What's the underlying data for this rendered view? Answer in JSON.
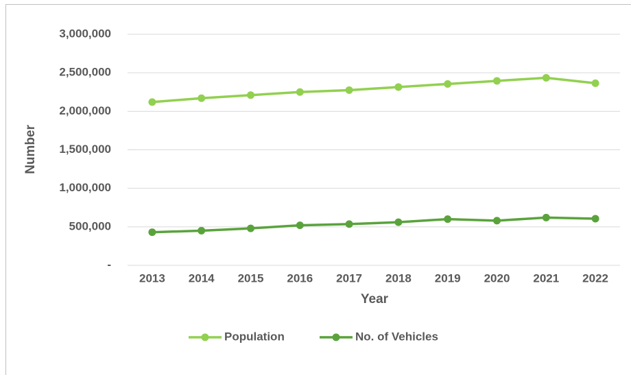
{
  "chart_data": {
    "type": "line",
    "x_label": "Year",
    "y_label": "Number",
    "categories": [
      "2013",
      "2014",
      "2015",
      "2016",
      "2017",
      "2018",
      "2019",
      "2020",
      "2021",
      "2022"
    ],
    "series": [
      {
        "name": "Population",
        "color": "#92d050",
        "values": [
          2120000,
          2170000,
          2210000,
          2250000,
          2275000,
          2315000,
          2355000,
          2395000,
          2435000,
          2365000
        ]
      },
      {
        "name": "No. of Vehicles",
        "color": "#5aa33c",
        "values": [
          430000,
          450000,
          480000,
          520000,
          535000,
          560000,
          600000,
          580000,
          620000,
          605000
        ]
      }
    ],
    "ylim": [
      0,
      3000000
    ],
    "yticks": [
      {
        "value": 0,
        "label": "-"
      },
      {
        "value": 500000,
        "label": "500,000"
      },
      {
        "value": 1000000,
        "label": "1,000,000"
      },
      {
        "value": 1500000,
        "label": "1,500,000"
      },
      {
        "value": 2000000,
        "label": "2,000,000"
      },
      {
        "value": 2500000,
        "label": "2,500,000"
      },
      {
        "value": 3000000,
        "label": "3,000,000"
      }
    ],
    "grid": true,
    "legend": "bottom"
  }
}
